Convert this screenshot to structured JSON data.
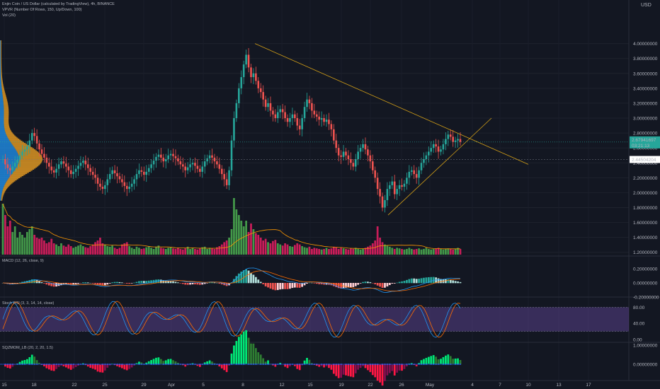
{
  "header": {
    "title": "Enjin Coin / US Dollar (calculated by TradingView), 4h, BINANCE",
    "vpvr": "VPVR (Number Of Rows, 150, Up/Down, 100)",
    "vol": "Vol (20)",
    "currency": "USD"
  },
  "price_axis": {
    "ticks": [
      "4.00000000",
      "3.80000000",
      "3.60000000",
      "3.40000000",
      "3.20000000",
      "3.00000000",
      "2.80000000",
      "2.60000000",
      "2.40000000",
      "2.20000000",
      "2.00000000",
      "1.80000000",
      "1.60000000",
      "1.40000000",
      "1.20000000"
    ],
    "last_price": "2.67941697",
    "countdown": "03:21:13",
    "mark_price": "2.44504204",
    "last_color": "#26a69a",
    "mark_color": "#ffffff"
  },
  "macd": {
    "label": "MACD (12, 26, close, 9)",
    "ticks": [
      "0.20000000",
      "0.00000000",
      "-0.20000000"
    ]
  },
  "stoch": {
    "label": "Stoch RSI (3, 3, 14, 14, close)",
    "ticks": [
      "80.00",
      "40.00",
      "0.00"
    ]
  },
  "sqz": {
    "label": "SQZMOM_LB (20, 2, 20, 1.5)",
    "ticks": [
      "1.00000000",
      "0.00000000"
    ]
  },
  "time_axis": {
    "labels": [
      "15",
      "18",
      "22",
      "25",
      "29",
      "Apr",
      "5",
      "8",
      "12",
      "15",
      "19",
      "22",
      "26",
      "May",
      "4",
      "7",
      "10",
      "13",
      "17"
    ]
  },
  "chart_data": {
    "type": "candlestick",
    "symbol": "ENJUSD",
    "interval": "4h",
    "ylim": [
      1.15,
      4.3
    ],
    "trendlines": [
      {
        "name": "upper-trendline",
        "from": [
          "Apr 9",
          4.0
        ],
        "to": [
          "May 7",
          2.38
        ]
      },
      {
        "name": "lower-trendline",
        "from": [
          "Apr 22",
          1.7
        ],
        "to": [
          "May 1",
          3.0
        ]
      }
    ],
    "close_series": [
      2.45,
      2.38,
      2.33,
      2.3,
      2.35,
      2.4,
      2.44,
      2.5,
      2.55,
      2.58,
      2.62,
      2.7,
      2.8,
      2.76,
      2.66,
      2.58,
      2.52,
      2.47,
      2.4,
      2.35,
      2.3,
      2.27,
      2.32,
      2.38,
      2.42,
      2.39,
      2.35,
      2.3,
      2.25,
      2.28,
      2.32,
      2.36,
      2.4,
      2.43,
      2.38,
      2.33,
      2.28,
      2.24,
      2.2,
      2.12,
      2.08,
      2.05,
      2.1,
      2.18,
      2.25,
      2.3,
      2.26,
      2.22,
      2.18,
      2.14,
      2.09,
      2.05,
      2.08,
      2.12,
      2.18,
      2.25,
      2.3,
      2.28,
      2.24,
      2.28,
      2.33,
      2.38,
      2.43,
      2.48,
      2.51,
      2.47,
      2.42,
      2.45,
      2.5,
      2.52,
      2.49,
      2.46,
      2.42,
      2.38,
      2.35,
      2.3,
      2.34,
      2.38,
      2.4,
      2.36,
      2.32,
      2.28,
      2.35,
      2.42,
      2.46,
      2.5,
      2.47,
      2.42,
      2.38,
      2.32,
      2.25,
      2.18,
      2.1,
      2.3,
      2.7,
      3.0,
      3.2,
      3.4,
      3.55,
      3.72,
      3.85,
      3.68,
      3.55,
      3.6,
      3.5,
      3.4,
      3.35,
      3.25,
      3.15,
      3.2,
      3.1,
      3.05,
      3.0,
      3.08,
      3.12,
      3.08,
      3.0,
      2.95,
      3.0,
      3.05,
      3.0,
      2.9,
      2.85,
      3.0,
      3.15,
      3.25,
      3.2,
      3.1,
      3.05,
      3.02,
      2.98,
      3.0,
      2.95,
      2.98,
      2.92,
      2.85,
      2.7,
      2.6,
      2.5,
      2.48,
      2.55,
      2.5,
      2.45,
      2.4,
      2.35,
      2.45,
      2.55,
      2.6,
      2.65,
      2.58,
      2.5,
      2.42,
      2.3,
      2.2,
      2.05,
      1.95,
      1.8,
      1.9,
      2.05,
      2.1,
      2.15,
      1.98,
      2.05,
      2.1,
      2.08,
      2.12,
      2.2,
      2.28,
      2.3,
      2.25,
      2.2,
      2.3,
      2.4,
      2.45,
      2.5,
      2.55,
      2.6,
      2.65,
      2.62,
      2.55,
      2.58,
      2.65,
      2.72,
      2.78,
      2.75,
      2.68,
      2.7,
      2.72,
      2.68
    ],
    "volume": [
      0.9,
      0.7,
      0.5,
      0.6,
      0.4,
      0.5,
      0.3,
      0.4,
      0.35,
      0.3,
      0.4,
      0.45,
      0.5,
      0.35,
      0.3,
      0.28,
      0.3,
      0.25,
      0.2,
      0.22,
      0.28,
      0.2,
      0.18,
      0.15,
      0.2,
      0.16,
      0.14,
      0.18,
      0.15,
      0.12,
      0.14,
      0.16,
      0.18,
      0.15,
      0.13,
      0.12,
      0.15,
      0.18,
      0.22,
      0.25,
      0.3,
      0.2,
      0.18,
      0.15,
      0.14,
      0.16,
      0.12,
      0.1,
      0.12,
      0.18,
      0.2,
      0.22,
      0.15,
      0.12,
      0.1,
      0.14,
      0.12,
      0.1,
      0.11,
      0.13,
      0.15,
      0.12,
      0.1,
      0.14,
      0.16,
      0.12,
      0.11,
      0.1,
      0.12,
      0.13,
      0.11,
      0.1,
      0.12,
      0.1,
      0.09,
      0.11,
      0.14,
      0.1,
      0.12,
      0.1,
      0.09,
      0.11,
      0.13,
      0.14,
      0.1,
      0.12,
      0.11,
      0.1,
      0.13,
      0.15,
      0.18,
      0.22,
      0.25,
      0.3,
      0.45,
      1.0,
      0.8,
      0.7,
      0.6,
      0.5,
      0.6,
      0.4,
      0.55,
      0.45,
      0.38,
      0.35,
      0.3,
      0.25,
      0.28,
      0.22,
      0.2,
      0.24,
      0.26,
      0.2,
      0.18,
      0.16,
      0.2,
      0.18,
      0.15,
      0.14,
      0.17,
      0.2,
      0.18,
      0.15,
      0.13,
      0.12,
      0.14,
      0.1,
      0.12,
      0.11,
      0.1,
      0.09,
      0.1,
      0.12,
      0.1,
      0.11,
      0.14,
      0.13,
      0.1,
      0.12,
      0.11,
      0.1,
      0.09,
      0.11,
      0.1,
      0.12,
      0.1,
      0.09,
      0.1,
      0.12,
      0.14,
      0.16,
      0.2,
      0.25,
      0.5,
      0.3,
      0.22,
      0.18,
      0.16,
      0.14,
      0.12,
      0.1,
      0.12,
      0.11,
      0.1,
      0.09,
      0.1,
      0.12,
      0.1,
      0.09,
      0.1,
      0.11,
      0.09,
      0.1,
      0.12,
      0.1,
      0.09,
      0.1,
      0.11,
      0.12,
      0.1,
      0.09,
      0.1,
      0.11,
      0.1,
      0.09,
      0.1,
      0.12,
      0.1
    ]
  }
}
